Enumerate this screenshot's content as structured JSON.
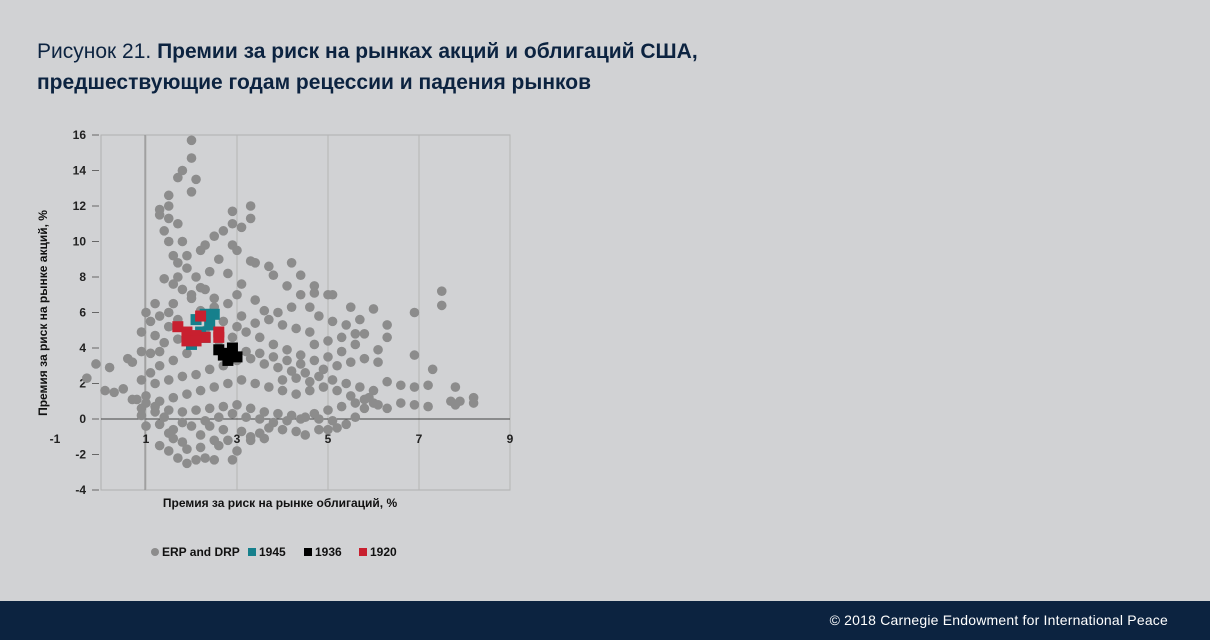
{
  "header": {
    "figure_label": "Рисунок 21.",
    "title": "Премии за риск на рынках акций и облигаций США, предшествующие годам рецессии и падения рынков"
  },
  "footer": {
    "copyright": "© 2018 Carnegie Endowment for International Peace"
  },
  "colors": {
    "background": "#d1d2d4",
    "footer": "#0c2340",
    "title": "#0c2340",
    "erp_drp": "#8c8c8c",
    "s1945": "#16808c",
    "s1936": "#000000",
    "s1920": "#c8202f"
  },
  "chart_data": {
    "type": "scatter",
    "xlabel": "Премия за риск на рынке облигаций, %",
    "ylabel": "Премия за риск на рынке акций, %",
    "xlim": [
      -1,
      9
    ],
    "ylim": [
      -4,
      16
    ],
    "xticks": [
      -1,
      1,
      3,
      5,
      7,
      9
    ],
    "yticks": [
      -4,
      -2,
      0,
      2,
      4,
      6,
      8,
      10,
      12,
      14,
      16
    ],
    "legend_position": "bottom",
    "grid": "vertical gridlines at x ticks",
    "series": [
      {
        "name": "ERP and DRP",
        "marker": "circle",
        "color": "#8c8c8c",
        "points": [
          [
            -0.3,
            2.3
          ],
          [
            -0.1,
            3.1
          ],
          [
            0.2,
            2.9
          ],
          [
            0.1,
            1.6
          ],
          [
            0.3,
            1.5
          ],
          [
            0.6,
            3.4
          ],
          [
            0.7,
            3.2
          ],
          [
            0.9,
            3.8
          ],
          [
            1.1,
            3.7
          ],
          [
            1.3,
            3.8
          ],
          [
            0.8,
            1.1
          ],
          [
            1.0,
            0.9
          ],
          [
            0.9,
            0.2
          ],
          [
            1.2,
            0.4
          ],
          [
            1.4,
            0.1
          ],
          [
            1.0,
            -0.4
          ],
          [
            1.3,
            -0.3
          ],
          [
            1.5,
            -0.8
          ],
          [
            1.8,
            -0.2
          ],
          [
            1.3,
            -1.5
          ],
          [
            1.5,
            -1.8
          ],
          [
            1.6,
            -1.1
          ],
          [
            1.8,
            -1.3
          ],
          [
            1.7,
            -2.2
          ],
          [
            1.9,
            -2.5
          ],
          [
            2.1,
            -2.3
          ],
          [
            2.3,
            -2.2
          ],
          [
            2.5,
            -2.3
          ],
          [
            2.9,
            -2.3
          ],
          [
            3.0,
            -1.8
          ],
          [
            2.8,
            -1.2
          ],
          [
            2.5,
            -1.2
          ],
          [
            2.2,
            -0.9
          ],
          [
            2.0,
            -0.4
          ],
          [
            2.4,
            -0.4
          ],
          [
            2.7,
            -0.6
          ],
          [
            3.1,
            -0.7
          ],
          [
            3.3,
            -1.0
          ],
          [
            3.5,
            -0.8
          ],
          [
            3.7,
            -0.5
          ],
          [
            4.0,
            -0.6
          ],
          [
            4.3,
            -0.7
          ],
          [
            4.5,
            -0.9
          ],
          [
            4.8,
            -0.6
          ],
          [
            5.0,
            -0.6
          ],
          [
            5.2,
            -0.5
          ],
          [
            5.4,
            -0.3
          ],
          [
            5.6,
            0.1
          ],
          [
            5.8,
            0.6
          ],
          [
            6.0,
            0.9
          ],
          [
            6.3,
            0.6
          ],
          [
            6.6,
            0.9
          ],
          [
            6.9,
            0.8
          ],
          [
            7.2,
            0.7
          ],
          [
            7.8,
            0.8
          ],
          [
            7.9,
            1.0
          ],
          [
            8.2,
            0.9
          ],
          [
            8.2,
            1.2
          ],
          [
            7.8,
            1.8
          ],
          [
            7.3,
            2.8
          ],
          [
            6.9,
            3.6
          ],
          [
            6.9,
            6.0
          ],
          [
            7.5,
            6.4
          ],
          [
            7.5,
            7.2
          ],
          [
            5.1,
            7.0
          ],
          [
            4.7,
            7.1
          ],
          [
            4.4,
            7.0
          ],
          [
            4.1,
            7.5
          ],
          [
            3.8,
            8.1
          ],
          [
            3.4,
            8.8
          ],
          [
            3.1,
            10.8
          ],
          [
            3.3,
            11.3
          ],
          [
            3.3,
            12.0
          ],
          [
            2.9,
            11.7
          ],
          [
            2.9,
            11.0
          ],
          [
            2.7,
            10.6
          ],
          [
            2.9,
            9.8
          ],
          [
            3.0,
            9.5
          ],
          [
            3.3,
            8.9
          ],
          [
            3.7,
            8.6
          ],
          [
            4.2,
            8.8
          ],
          [
            4.4,
            8.1
          ],
          [
            4.7,
            7.5
          ],
          [
            5.0,
            7.0
          ],
          [
            5.5,
            6.3
          ],
          [
            6.0,
            6.2
          ],
          [
            6.3,
            5.3
          ],
          [
            6.3,
            4.6
          ],
          [
            6.1,
            3.9
          ],
          [
            6.1,
            3.2
          ],
          [
            6.3,
            2.1
          ],
          [
            6.6,
            1.9
          ],
          [
            6.9,
            1.8
          ],
          [
            7.2,
            1.9
          ],
          [
            7.7,
            1.0
          ],
          [
            2.0,
            15.7
          ],
          [
            2.0,
            14.7
          ],
          [
            1.8,
            14.0
          ],
          [
            1.7,
            13.6
          ],
          [
            2.1,
            13.5
          ],
          [
            2.0,
            12.8
          ],
          [
            1.5,
            12.6
          ],
          [
            1.5,
            12.0
          ],
          [
            1.3,
            11.8
          ],
          [
            1.3,
            11.5
          ],
          [
            1.5,
            11.3
          ],
          [
            1.7,
            11.0
          ],
          [
            1.4,
            10.6
          ],
          [
            1.5,
            10.0
          ],
          [
            1.8,
            10.0
          ],
          [
            1.6,
            9.2
          ],
          [
            1.7,
            8.8
          ],
          [
            1.9,
            8.5
          ],
          [
            1.7,
            8.0
          ],
          [
            1.6,
            7.6
          ],
          [
            1.8,
            7.3
          ],
          [
            2.0,
            7.0
          ],
          [
            1.6,
            6.5
          ],
          [
            1.5,
            6.0
          ],
          [
            1.3,
            5.8
          ],
          [
            1.1,
            5.5
          ],
          [
            0.9,
            4.9
          ],
          [
            1.2,
            4.7
          ],
          [
            1.4,
            4.3
          ],
          [
            1.7,
            4.5
          ],
          [
            2.0,
            4.2
          ],
          [
            2.3,
            9.8
          ],
          [
            2.5,
            10.3
          ],
          [
            2.4,
            8.3
          ],
          [
            2.1,
            8.0
          ],
          [
            2.3,
            7.3
          ],
          [
            2.5,
            6.8
          ],
          [
            2.2,
            6.1
          ],
          [
            2.5,
            6.3
          ],
          [
            2.8,
            6.5
          ],
          [
            3.0,
            7.0
          ],
          [
            3.4,
            6.7
          ],
          [
            3.6,
            6.1
          ],
          [
            3.9,
            6.0
          ],
          [
            4.2,
            6.3
          ],
          [
            4.6,
            6.3
          ],
          [
            4.8,
            5.8
          ],
          [
            5.1,
            5.5
          ],
          [
            5.4,
            5.3
          ],
          [
            5.7,
            5.6
          ],
          [
            5.8,
            4.8
          ],
          [
            5.6,
            4.2
          ],
          [
            5.3,
            3.8
          ],
          [
            5.0,
            3.5
          ],
          [
            4.7,
            3.3
          ],
          [
            4.4,
            3.6
          ],
          [
            4.1,
            3.9
          ],
          [
            3.8,
            4.2
          ],
          [
            3.5,
            4.6
          ],
          [
            3.2,
            4.9
          ],
          [
            3.0,
            5.2
          ],
          [
            2.7,
            5.5
          ],
          [
            2.3,
            5.0
          ],
          [
            1.9,
            3.7
          ],
          [
            1.6,
            3.3
          ],
          [
            1.3,
            3.0
          ],
          [
            1.1,
            2.6
          ],
          [
            0.9,
            2.2
          ],
          [
            1.2,
            2.0
          ],
          [
            1.5,
            2.2
          ],
          [
            1.8,
            2.4
          ],
          [
            2.1,
            2.5
          ],
          [
            2.4,
            2.8
          ],
          [
            2.7,
            3.0
          ],
          [
            3.0,
            3.3
          ],
          [
            3.3,
            3.4
          ],
          [
            3.6,
            3.1
          ],
          [
            3.9,
            2.9
          ],
          [
            4.2,
            2.7
          ],
          [
            4.5,
            2.6
          ],
          [
            4.8,
            2.4
          ],
          [
            5.1,
            2.2
          ],
          [
            5.4,
            2.0
          ],
          [
            5.7,
            1.8
          ],
          [
            6.0,
            1.6
          ],
          [
            6.1,
            0.8
          ],
          [
            5.8,
            1.1
          ],
          [
            5.5,
            1.3
          ],
          [
            5.2,
            1.6
          ],
          [
            4.9,
            1.8
          ],
          [
            4.6,
            1.6
          ],
          [
            4.3,
            1.4
          ],
          [
            4.0,
            1.6
          ],
          [
            3.7,
            1.8
          ],
          [
            3.4,
            2.0
          ],
          [
            3.1,
            2.2
          ],
          [
            2.8,
            2.0
          ],
          [
            2.5,
            1.8
          ],
          [
            2.2,
            1.6
          ],
          [
            1.9,
            1.4
          ],
          [
            1.6,
            1.2
          ],
          [
            1.3,
            1.0
          ],
          [
            1.0,
            1.3
          ],
          [
            0.7,
            1.1
          ],
          [
            0.9,
            0.6
          ],
          [
            1.2,
            0.7
          ],
          [
            1.5,
            0.5
          ],
          [
            1.8,
            0.4
          ],
          [
            2.1,
            0.5
          ],
          [
            2.4,
            0.6
          ],
          [
            2.7,
            0.7
          ],
          [
            3.0,
            0.8
          ],
          [
            3.3,
            0.6
          ],
          [
            3.6,
            0.4
          ],
          [
            3.9,
            0.3
          ],
          [
            4.2,
            0.2
          ],
          [
            4.5,
            0.1
          ],
          [
            4.8,
            0.0
          ],
          [
            5.1,
            -0.1
          ],
          [
            3.3,
            -1.2
          ],
          [
            3.6,
            -1.1
          ],
          [
            2.6,
            -1.5
          ],
          [
            2.2,
            -1.6
          ],
          [
            1.9,
            -1.7
          ],
          [
            1.6,
            -0.6
          ],
          [
            2.3,
            -0.1
          ],
          [
            2.6,
            0.1
          ],
          [
            2.9,
            0.3
          ],
          [
            3.2,
            0.1
          ],
          [
            3.5,
            0.0
          ],
          [
            3.8,
            -0.2
          ],
          [
            4.1,
            -0.1
          ],
          [
            4.4,
            0.0
          ],
          [
            4.7,
            0.3
          ],
          [
            5.0,
            0.5
          ],
          [
            5.3,
            0.7
          ],
          [
            5.6,
            0.9
          ],
          [
            5.9,
            1.2
          ],
          [
            4.0,
            2.2
          ],
          [
            4.3,
            2.3
          ],
          [
            4.6,
            2.1
          ],
          [
            4.9,
            2.8
          ],
          [
            5.2,
            3.0
          ],
          [
            5.5,
            3.2
          ],
          [
            5.8,
            3.4
          ],
          [
            3.2,
            3.8
          ],
          [
            3.5,
            3.7
          ],
          [
            3.8,
            3.5
          ],
          [
            4.1,
            3.3
          ],
          [
            4.4,
            3.1
          ],
          [
            4.7,
            4.2
          ],
          [
            5.0,
            4.4
          ],
          [
            5.3,
            4.6
          ],
          [
            5.6,
            4.8
          ],
          [
            3.4,
            5.4
          ],
          [
            3.7,
            5.6
          ],
          [
            4.0,
            5.3
          ],
          [
            4.3,
            5.1
          ],
          [
            4.6,
            4.9
          ],
          [
            2.6,
            4.4
          ],
          [
            2.9,
            4.6
          ],
          [
            3.1,
            5.8
          ],
          [
            2.0,
            6.8
          ],
          [
            2.2,
            7.4
          ],
          [
            1.9,
            9.2
          ],
          [
            2.2,
            9.5
          ],
          [
            2.6,
            9.0
          ],
          [
            2.8,
            8.2
          ],
          [
            3.1,
            7.6
          ],
          [
            1.4,
            7.9
          ],
          [
            1.2,
            6.5
          ],
          [
            1.0,
            6.0
          ],
          [
            1.5,
            5.2
          ],
          [
            1.7,
            5.6
          ],
          [
            0.5,
            1.7
          ]
        ]
      },
      {
        "name": "1945",
        "marker": "square",
        "color": "#16808c",
        "points": [
          [
            2.3,
            5.9
          ],
          [
            2.5,
            5.9
          ],
          [
            2.1,
            5.6
          ],
          [
            2.4,
            5.3
          ],
          [
            2.2,
            4.9
          ],
          [
            2.0,
            4.2
          ],
          [
            2.3,
            4.6
          ]
        ]
      },
      {
        "name": "1936",
        "marker": "square",
        "color": "#000000",
        "points": [
          [
            2.6,
            3.9
          ],
          [
            2.8,
            3.7
          ],
          [
            2.9,
            4.0
          ],
          [
            3.0,
            3.5
          ],
          [
            2.8,
            3.3
          ],
          [
            2.7,
            3.6
          ]
        ]
      },
      {
        "name": "1920",
        "marker": "square",
        "color": "#c8202f",
        "points": [
          [
            1.7,
            5.2
          ],
          [
            2.2,
            5.8
          ],
          [
            1.9,
            4.9
          ],
          [
            2.1,
            4.7
          ],
          [
            1.9,
            4.4
          ],
          [
            2.3,
            4.6
          ],
          [
            2.6,
            4.9
          ],
          [
            2.6,
            4.6
          ],
          [
            2.1,
            4.4
          ]
        ]
      }
    ]
  }
}
